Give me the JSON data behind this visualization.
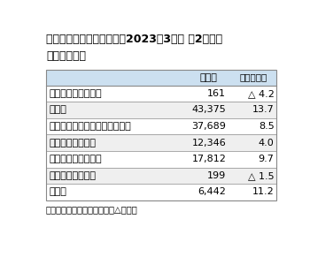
{
  "title_line1": "ゼビオホールディングス、2023年3月期 第2四半期",
  "title_line2": "部門別売上高",
  "header": [
    "",
    "売上高",
    "（増減率）"
  ],
  "rows": [
    [
      "ウィンタースポーツ",
      "161",
      "△ 4.2"
    ],
    [
      "ゴルフ",
      "43,375",
      "13.7"
    ],
    [
      "一般競技スポーツ・シューズ゚",
      "37,689",
      "8.5"
    ],
    [
      "スポーツアパレル",
      "12,346",
      "4.0"
    ],
    [
      "アウトドア・その他",
      "17,812",
      "9.7"
    ],
    [
      "ファッション衣料",
      "199",
      "△ 1.5"
    ],
    [
      "その他",
      "6,442",
      "11.2"
    ]
  ],
  "footnote": "単位は百万円。増減率は％。△は減。",
  "header_bg": "#cce0f0",
  "row_bg_even": "#efefef",
  "row_bg_odd": "#ffffff",
  "border_color": "#888888",
  "text_color": "#000000",
  "title_fontsize": 9.0,
  "table_fontsize": 8.0,
  "footnote_fontsize": 7.2
}
